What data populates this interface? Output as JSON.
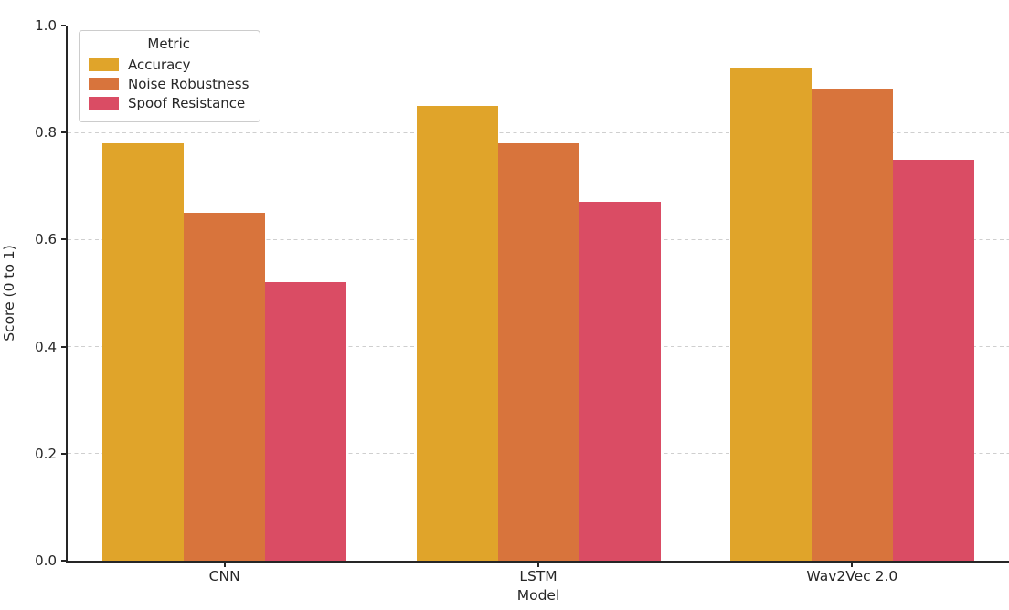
{
  "chart_data": {
    "type": "bar",
    "title": "",
    "xlabel": "Model",
    "ylabel": "Score (0 to 1)",
    "categories": [
      "CNN",
      "LSTM",
      "Wav2Vec 2.0"
    ],
    "series": [
      {
        "name": "Accuracy",
        "color": "#e0a42a",
        "values": [
          0.78,
          0.85,
          0.92
        ]
      },
      {
        "name": "Noise Robustness",
        "color": "#d8743c",
        "values": [
          0.65,
          0.78,
          0.88
        ]
      },
      {
        "name": "Spoof Resistance",
        "color": "#da4c64",
        "values": [
          0.52,
          0.67,
          0.75
        ]
      }
    ],
    "ylim": [
      0.0,
      1.0
    ],
    "yticks": [
      0.0,
      0.2,
      0.4,
      0.6,
      0.8,
      1.0
    ],
    "ytick_labels": [
      "0.0",
      "0.2",
      "0.4",
      "0.6",
      "0.8",
      "1.0"
    ],
    "grid": "horizontal-dashed",
    "legend": {
      "title": "Metric",
      "position": "upper-left"
    }
  },
  "colors": {
    "text": "#262626",
    "spine": "#262626",
    "gridline": "#cfcfcf",
    "background": "#ffffff",
    "legend_border": "#cccccc"
  }
}
